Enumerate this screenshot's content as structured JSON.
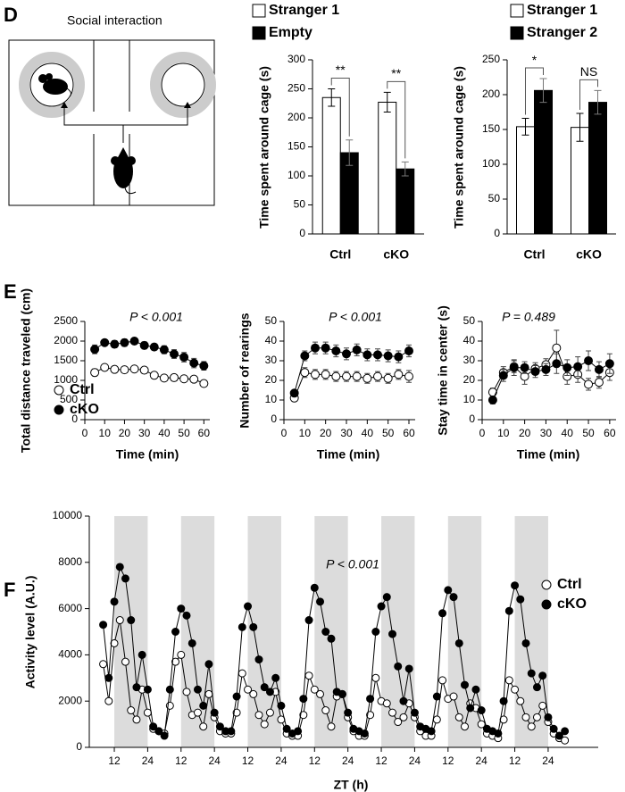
{
  "panel_labels": [
    "D",
    "E",
    "F"
  ],
  "diagram": {
    "title": "Social interaction"
  },
  "chart_data": [
    {
      "type": "bar",
      "ylabel": "Time spent around cage (s)",
      "categories": [
        "Ctrl",
        "cKO"
      ],
      "series": [
        {
          "name": "Stranger 1",
          "color": "#ffffff",
          "values": [
            235,
            227
          ],
          "errors": [
            15,
            17
          ]
        },
        {
          "name": "Empty",
          "color": "#000000",
          "values": [
            140,
            112
          ],
          "errors": [
            22,
            12
          ]
        }
      ],
      "annotations": [
        "**",
        "**"
      ],
      "ylim": [
        0,
        300
      ],
      "yticks": [
        0,
        50,
        100,
        150,
        200,
        250,
        300
      ]
    },
    {
      "type": "bar",
      "ylabel": "Time spent around cage (s)",
      "categories": [
        "Ctrl",
        "cKO"
      ],
      "series": [
        {
          "name": "Stranger 1",
          "color": "#ffffff",
          "values": [
            154,
            153
          ],
          "errors": [
            12,
            20
          ]
        },
        {
          "name": "Stranger 2",
          "color": "#000000",
          "values": [
            206,
            189
          ],
          "errors": [
            17,
            17
          ]
        }
      ],
      "annotations": [
        "*",
        "NS"
      ],
      "ylim": [
        0,
        250
      ],
      "yticks": [
        0,
        50,
        100,
        150,
        200,
        250
      ]
    },
    {
      "type": "line",
      "xlabel": "Time (min)",
      "ylabel": "Total distance traveled (cm)",
      "annotation": "P < 0.001",
      "x": [
        5,
        10,
        15,
        20,
        25,
        30,
        35,
        40,
        45,
        50,
        55,
        60
      ],
      "series": [
        {
          "name": "Ctrl",
          "color": "#000000",
          "marker_fill": "#ffffff",
          "values": [
            1200,
            1330,
            1280,
            1270,
            1290,
            1260,
            1130,
            1060,
            1070,
            1040,
            1030,
            920
          ],
          "errors": [
            90,
            70,
            70,
            70,
            70,
            70,
            80,
            70,
            70,
            70,
            70,
            80
          ]
        },
        {
          "name": "cKO",
          "color": "#000000",
          "marker_fill": "#000000",
          "values": [
            1790,
            1960,
            1920,
            1960,
            2000,
            1890,
            1850,
            1780,
            1670,
            1590,
            1440,
            1370
          ],
          "errors": [
            110,
            70,
            90,
            90,
            80,
            90,
            80,
            100,
            110,
            120,
            120,
            110
          ]
        }
      ],
      "legend": "lower left",
      "xlim": [
        0,
        63
      ],
      "xticks": [
        0,
        10,
        20,
        30,
        40,
        50,
        60
      ],
      "ylim": [
        0,
        2500
      ],
      "yticks": [
        0,
        500,
        1000,
        1500,
        2000,
        2500
      ]
    },
    {
      "type": "line",
      "xlabel": "Time (min)",
      "ylabel": "Number of rearings",
      "annotation": "P < 0.001",
      "x": [
        5,
        10,
        15,
        20,
        25,
        30,
        35,
        40,
        45,
        50,
        55,
        60
      ],
      "series": [
        {
          "color": "#000000",
          "marker_fill": "#ffffff",
          "values": [
            11,
            24,
            23,
            23,
            22,
            22,
            22,
            21,
            22,
            21,
            23,
            22
          ],
          "errors": [
            1.5,
            2.5,
            2.5,
            2.5,
            2.5,
            2.5,
            2.5,
            2.5,
            2.5,
            2.5,
            2.5,
            3
          ]
        },
        {
          "color": "#000000",
          "marker_fill": "#000000",
          "values": [
            13.5,
            32.5,
            36.5,
            36.5,
            35,
            33.5,
            35.5,
            33,
            33,
            32.5,
            32,
            35
          ],
          "errors": [
            1.5,
            2.5,
            3,
            3,
            3,
            3,
            3,
            3,
            3,
            3,
            3,
            3
          ]
        }
      ],
      "xlim": [
        0,
        63
      ],
      "xticks": [
        0,
        10,
        20,
        30,
        40,
        50,
        60
      ],
      "ylim": [
        0,
        50
      ],
      "yticks": [
        0,
        10,
        20,
        30,
        40,
        50
      ]
    },
    {
      "type": "line",
      "xlabel": "Time (min)",
      "ylabel": "Stay time in center (s)",
      "annotation": "P = 0.489",
      "x": [
        5,
        10,
        15,
        20,
        25,
        30,
        35,
        40,
        45,
        50,
        55,
        60
      ],
      "series": [
        {
          "color": "#000000",
          "marker_fill": "#ffffff",
          "values": [
            14,
            24,
            27,
            22,
            26,
            28,
            36.5,
            22,
            23,
            18,
            19,
            24
          ],
          "errors": [
            2,
            3,
            3,
            4,
            3,
            3,
            9,
            4,
            4,
            3,
            3,
            4
          ]
        },
        {
          "color": "#000000",
          "marker_fill": "#000000",
          "values": [
            10,
            22.5,
            26.5,
            26.5,
            24.5,
            25.5,
            28.5,
            26.5,
            27,
            30,
            25.5,
            28.5
          ],
          "errors": [
            2,
            3,
            4,
            3,
            3,
            3,
            5,
            4,
            5,
            5,
            4,
            5
          ]
        }
      ],
      "xlim": [
        0,
        63
      ],
      "xticks": [
        0,
        10,
        20,
        30,
        40,
        50,
        60
      ],
      "ylim": [
        0,
        50
      ],
      "yticks": [
        0,
        10,
        20,
        30,
        40,
        50
      ]
    },
    {
      "type": "line",
      "xlabel": "ZT (h)",
      "ylabel": "Activity level (A.U.)",
      "annotation": "P < 0.001",
      "x": [
        8,
        10,
        12,
        14,
        16,
        18,
        20,
        22,
        24,
        26,
        28,
        30,
        32,
        34,
        36,
        38,
        40,
        42,
        44,
        46,
        48,
        50,
        52,
        54,
        56,
        58,
        60,
        62,
        64,
        66,
        68,
        70,
        72,
        74,
        76,
        78,
        80,
        82,
        84,
        86,
        88,
        90,
        92,
        94,
        96,
        98,
        100,
        102,
        104,
        106,
        108,
        110,
        112,
        114,
        116,
        118,
        120,
        122,
        124,
        126,
        128,
        130,
        132,
        134,
        136,
        138,
        140,
        142,
        144,
        146,
        148,
        150,
        152,
        154,
        156,
        158,
        160,
        162,
        164,
        166,
        168,
        170,
        172,
        174
      ],
      "series": [
        {
          "name": "Ctrl",
          "color": "#000000",
          "marker_fill": "#ffffff",
          "values": [
            3600,
            2000,
            4500,
            5500,
            3700,
            1600,
            1200,
            2500,
            1500,
            800,
            700,
            600,
            1800,
            3700,
            4000,
            2400,
            1400,
            1500,
            900,
            2300,
            1300,
            700,
            600,
            600,
            1500,
            3200,
            2500,
            2300,
            1400,
            1000,
            1500,
            2400,
            1200,
            600,
            500,
            500,
            1400,
            3100,
            2500,
            2300,
            1600,
            900,
            2200,
            2300,
            1300,
            700,
            500,
            500,
            1400,
            3000,
            2000,
            1900,
            1500,
            1100,
            1300,
            1900,
            1300,
            700,
            500,
            500,
            1200,
            2900,
            2100,
            2200,
            1300,
            900,
            1900,
            1700,
            1000,
            600,
            500,
            400,
            1200,
            2900,
            2500,
            2000,
            1300,
            900,
            1300,
            1800,
            1100,
            600,
            400,
            300
          ]
        },
        {
          "name": "cKO",
          "color": "#000000",
          "marker_fill": "#000000",
          "values": [
            5300,
            3000,
            6300,
            7800,
            7300,
            5500,
            2600,
            4000,
            2500,
            900,
            700,
            500,
            2500,
            5000,
            6000,
            5700,
            4500,
            2500,
            1800,
            3600,
            1500,
            900,
            700,
            700,
            2200,
            5200,
            6100,
            5200,
            3800,
            2600,
            2400,
            3000,
            1800,
            800,
            600,
            700,
            2100,
            5500,
            6900,
            6300,
            5000,
            4700,
            2400,
            2300,
            1500,
            800,
            700,
            600,
            2100,
            5000,
            6100,
            6500,
            4900,
            3500,
            2000,
            3400,
            1500,
            900,
            800,
            700,
            2200,
            5800,
            6800,
            6500,
            4500,
            2700,
            1700,
            2500,
            1600,
            800,
            700,
            600,
            2000,
            5900,
            7000,
            6400,
            4500,
            3200,
            2600,
            3100,
            1300,
            800,
            500,
            700
          ]
        }
      ],
      "shaded_x": [
        [
          12,
          24
        ],
        [
          36,
          48
        ],
        [
          60,
          72
        ],
        [
          84,
          96
        ],
        [
          108,
          120
        ],
        [
          132,
          144
        ],
        [
          156,
          168
        ]
      ],
      "shade_color": "#dcdcdc",
      "legend": "upper right",
      "xlim": [
        3,
        186
      ],
      "xticks": [
        12,
        24,
        {
          "value": 36,
          "label": "12"
        },
        {
          "value": 48,
          "label": "24"
        },
        {
          "value": 60,
          "label": "12"
        },
        {
          "value": 72,
          "label": "24"
        },
        {
          "value": 84,
          "label": "12"
        },
        {
          "value": 96,
          "label": "24"
        },
        {
          "value": 108,
          "label": "12"
        },
        {
          "value": 120,
          "label": "24"
        },
        {
          "value": 132,
          "label": "12"
        },
        {
          "value": 144,
          "label": "24"
        },
        {
          "value": 156,
          "label": "12"
        },
        {
          "value": 168,
          "label": "24"
        }
      ],
      "ylim": [
        0,
        10000
      ],
      "yticks": [
        0,
        2000,
        4000,
        6000,
        8000,
        10000
      ]
    }
  ]
}
